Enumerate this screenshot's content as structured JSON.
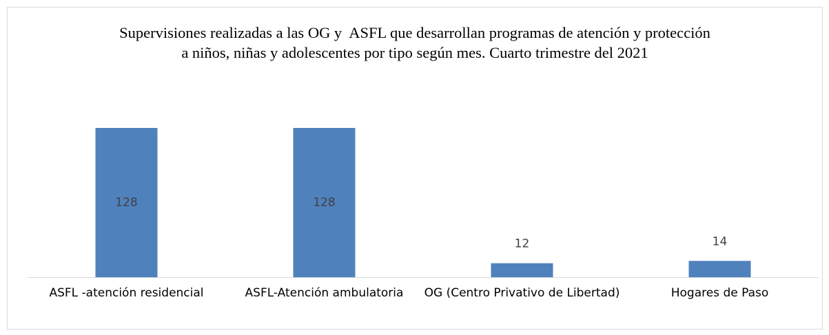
{
  "chart_data": {
    "type": "bar",
    "title": "Supervisiones realizadas a las OG y  ASFL que desarrollan programas de atención y protección a niños, niñas y adolescentes por tipo según mes. Cuarto trimestre del 2021",
    "categories": [
      "ASFL -atención residencial",
      "ASFL-Atención ambulatoria",
      "OG (Centro Privativo de Libertad)",
      "Hogares de Paso"
    ],
    "values": [
      128,
      128,
      12,
      14
    ],
    "color": "#4f81bd",
    "ylim": [
      0,
      128
    ]
  }
}
